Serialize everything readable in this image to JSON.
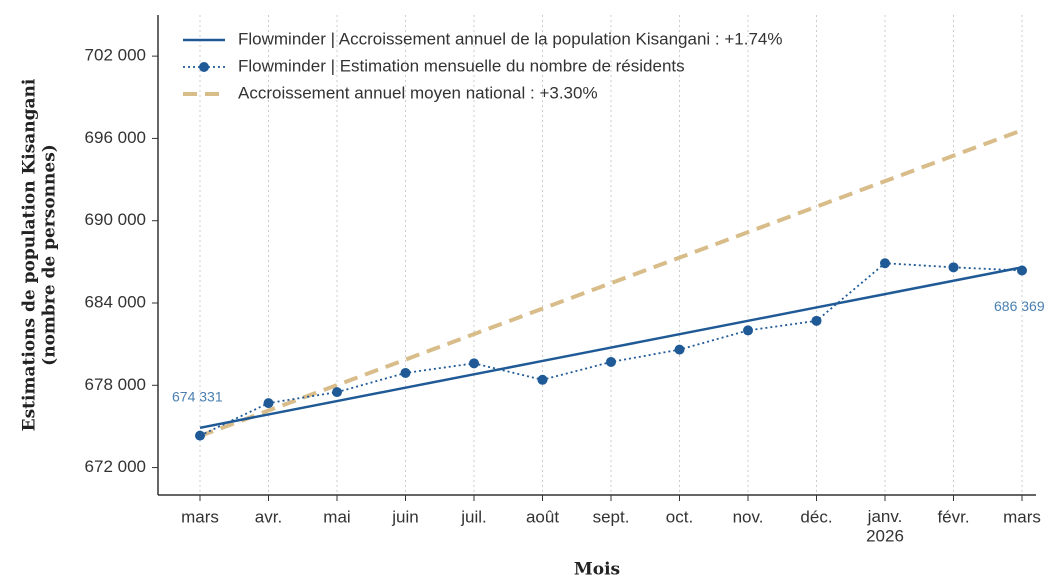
{
  "chart_data": {
    "type": "line",
    "xlabel": "Mois",
    "ylabel": [
      "Estimations de population Kisangani",
      "(nombre de personnes)"
    ],
    "categories": [
      "mars",
      "avr.",
      "mai",
      "juin",
      "juil.",
      "août",
      "sept.",
      "oct.",
      "nov.",
      "déc.",
      "janv.\n2026",
      "févr.",
      "mars"
    ],
    "series": [
      {
        "name": "Flowminder | Accroissement annuel de la population Kisangani : +1.74%",
        "color": "#1f5a96",
        "style": "solid",
        "markers": false,
        "values": [
          674900,
          675875,
          676850,
          677825,
          678800,
          679775,
          680750,
          681725,
          682700,
          683675,
          684650,
          685625,
          686600
        ]
      },
      {
        "name": "Flowminder | Estimation mensuelle du nombre de résidents",
        "color": "#1f5a96",
        "style": "dotted",
        "markers": true,
        "values": [
          674331,
          676700,
          677500,
          678900,
          679600,
          678400,
          679700,
          680600,
          682000,
          682700,
          686900,
          686600,
          686369
        ],
        "value_labels": [
          "674 331",
          null,
          null,
          null,
          null,
          null,
          null,
          null,
          null,
          null,
          null,
          null,
          "686 369"
        ]
      },
      {
        "name": "Accroissement annuel moyen national : +3.30%",
        "color": "#d8bd8a",
        "style": "dashed",
        "markers": false,
        "values": [
          674300,
          676158,
          678017,
          679875,
          681733,
          683592,
          685450,
          687308,
          689167,
          691025,
          692883,
          694742,
          696600
        ]
      }
    ],
    "ylim": [
      670000,
      705000
    ],
    "yticks": [
      {
        "value": 672000,
        "label": "672 000"
      },
      {
        "value": 678000,
        "label": "678 000"
      },
      {
        "value": 684000,
        "label": "684 000"
      },
      {
        "value": 690000,
        "label": "690 000"
      },
      {
        "value": 696000,
        "label": "696 000"
      },
      {
        "value": 702000,
        "label": "702 000"
      }
    ],
    "grid": "x",
    "legend": "upper left"
  }
}
